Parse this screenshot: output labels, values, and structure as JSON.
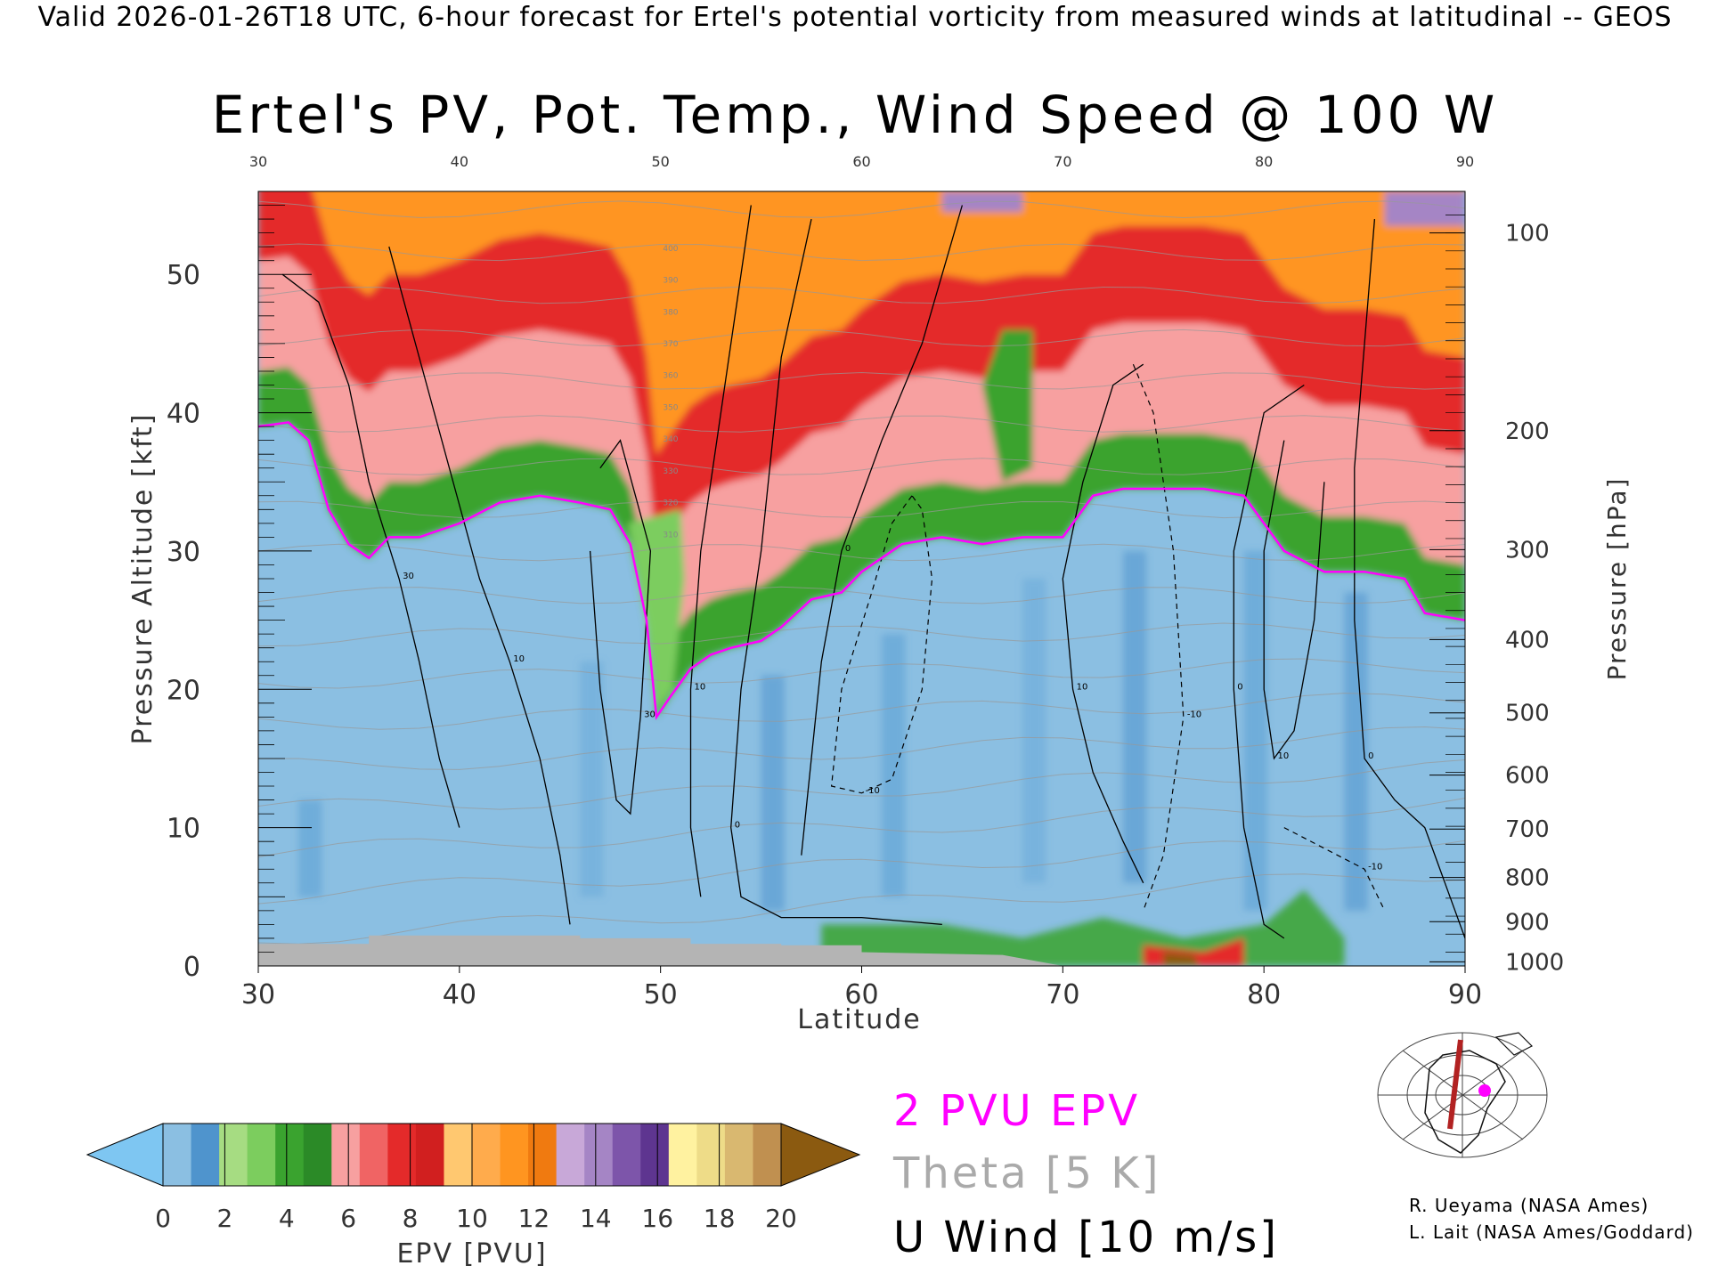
{
  "header": {
    "text": "Valid 2026-01-26T18 UTC, 6-hour forecast for Ertel's potential vorticity from measured winds at latitudinal -- GEOS"
  },
  "title": "Ertel's PV, Pot. Temp., Wind Speed @ 100 W",
  "legend": {
    "epv_line": "2 PVU EPV",
    "theta": "Theta [5 K]",
    "uwind": "U Wind [10 m/s]",
    "epv_color": "#ff00ff",
    "theta_color": "#aaaaaa",
    "uwind_color": "#000000"
  },
  "credits": [
    "R. Ueyama (NASA Ames)",
    "L. Lait (NASA Ames/Goddard)"
  ],
  "chart_data": {
    "type": "heatmap",
    "xlabel": "Latitude",
    "ylabel": "Pressure Altitude [kft]",
    "ylabel_right": "Pressure [hPa]",
    "xlim": [
      30,
      90
    ],
    "ylim": [
      0,
      56
    ],
    "x_ticks": [
      "30",
      "40",
      "50",
      "60",
      "70",
      "80",
      "90"
    ],
    "x_ticks_top": [
      "30",
      "40",
      "50",
      "60",
      "70",
      "80",
      "90"
    ],
    "y_ticks": [
      "0",
      "10",
      "20",
      "30",
      "40",
      "50"
    ],
    "pressure_ticks": [
      {
        "label": "100",
        "kft": 53.0
      },
      {
        "label": "200",
        "kft": 38.7
      },
      {
        "label": "300",
        "kft": 30.1
      },
      {
        "label": "400",
        "kft": 23.6
      },
      {
        "label": "500",
        "kft": 18.3
      },
      {
        "label": "600",
        "kft": 13.8
      },
      {
        "label": "700",
        "kft": 9.9
      },
      {
        "label": "800",
        "kft": 6.4
      },
      {
        "label": "900",
        "kft": 3.2
      },
      {
        "label": "1000",
        "kft": 0.3
      }
    ],
    "colorbar": {
      "label": "EPV [PVU]",
      "ticks": [
        "0",
        "2",
        "4",
        "6",
        "8",
        "10",
        "12",
        "14",
        "16",
        "18",
        "20"
      ],
      "under_color": "#7ec6f2",
      "over_color": "#8b5a10",
      "colors": [
        "#8bbfe2",
        "#4f94cd",
        "#a6dc82",
        "#7ccd5e",
        "#3aa32f",
        "#2b8a27",
        "#f7a0a0",
        "#f06464",
        "#e42a2a",
        "#d11f1f",
        "#ffc870",
        "#ffab4c",
        "#ff9520",
        "#f07a10",
        "#c8a8d8",
        "#a585c5",
        "#7d55aa",
        "#5e3590",
        "#fff2a0",
        "#eedc88",
        "#d9b870",
        "#c09050"
      ]
    },
    "epv_2pvu_contour": [
      [
        30.0,
        39.0
      ],
      [
        31.5,
        39.3
      ],
      [
        32.5,
        38.0
      ],
      [
        33.5,
        33.0
      ],
      [
        34.5,
        30.5
      ],
      [
        35.5,
        29.5
      ],
      [
        36.5,
        31.0
      ],
      [
        38.0,
        31.0
      ],
      [
        40.0,
        32.0
      ],
      [
        42.0,
        33.5
      ],
      [
        44.0,
        34.0
      ],
      [
        46.0,
        33.5
      ],
      [
        47.5,
        33.0
      ],
      [
        48.5,
        30.5
      ],
      [
        49.3,
        25.0
      ],
      [
        49.8,
        18.0
      ],
      [
        50.5,
        19.5
      ],
      [
        51.5,
        21.5
      ],
      [
        52.5,
        22.5
      ],
      [
        53.5,
        23.0
      ],
      [
        55.0,
        23.5
      ],
      [
        56.0,
        24.5
      ],
      [
        57.5,
        26.5
      ],
      [
        59.0,
        27.0
      ],
      [
        60.0,
        28.5
      ],
      [
        62.0,
        30.5
      ],
      [
        64.0,
        31.0
      ],
      [
        66.0,
        30.5
      ],
      [
        68.0,
        31.0
      ],
      [
        70.0,
        31.0
      ],
      [
        71.5,
        34.0
      ],
      [
        73.0,
        34.5
      ],
      [
        75.0,
        34.5
      ],
      [
        77.0,
        34.5
      ],
      [
        79.0,
        34.0
      ],
      [
        81.0,
        30.0
      ],
      [
        83.0,
        28.5
      ],
      [
        85.0,
        28.5
      ],
      [
        87.0,
        28.0
      ],
      [
        88.0,
        25.5
      ],
      [
        90.0,
        25.0
      ]
    ],
    "u_wind_contours": [
      {
        "label": "30",
        "points": [
          [
            31.2,
            50.0
          ],
          [
            33.0,
            48.0
          ],
          [
            34.5,
            42.0
          ],
          [
            35.5,
            35.0
          ],
          [
            37.0,
            28.0
          ],
          [
            38.0,
            22.0
          ],
          [
            39.0,
            15.0
          ],
          [
            40.0,
            10.0
          ]
        ]
      },
      {
        "label": "10",
        "points": [
          [
            36.5,
            52.0
          ],
          [
            38.0,
            44.0
          ],
          [
            39.5,
            36.0
          ],
          [
            41.0,
            28.0
          ],
          [
            42.5,
            22.0
          ],
          [
            44.0,
            15.0
          ],
          [
            45.0,
            8.0
          ],
          [
            45.5,
            3.0
          ]
        ]
      },
      {
        "label": "30",
        "points": [
          [
            46.5,
            30.0
          ],
          [
            47.0,
            20.0
          ],
          [
            47.8,
            12.0
          ],
          [
            48.5,
            11.0
          ],
          [
            49.0,
            18.0
          ],
          [
            49.5,
            30.0
          ],
          [
            48.0,
            38.0
          ],
          [
            47.0,
            36.0
          ]
        ]
      },
      {
        "label": "10",
        "points": [
          [
            54.5,
            55.0
          ],
          [
            53.0,
            40.0
          ],
          [
            52.0,
            30.0
          ],
          [
            51.5,
            20.0
          ],
          [
            51.5,
            10.0
          ],
          [
            52.0,
            5.0
          ]
        ]
      },
      {
        "label": "0",
        "points": [
          [
            57.5,
            54.0
          ],
          [
            56.0,
            44.0
          ],
          [
            55.0,
            30.0
          ],
          [
            54.0,
            20.0
          ],
          [
            53.5,
            10.0
          ],
          [
            54.0,
            5.0
          ],
          [
            56.0,
            3.5
          ],
          [
            60.0,
            3.5
          ],
          [
            64.0,
            3.0
          ]
        ]
      },
      {
        "label": "0",
        "points": [
          [
            65.0,
            55.0
          ],
          [
            63.0,
            45.0
          ],
          [
            61.0,
            38.0
          ],
          [
            59.0,
            30.0
          ],
          [
            58.0,
            22.0
          ],
          [
            57.5,
            15.0
          ],
          [
            57.0,
            8.0
          ]
        ]
      },
      {
        "label": "10",
        "points": [
          [
            74.0,
            43.5
          ],
          [
            72.5,
            42.0
          ],
          [
            71.0,
            35.0
          ],
          [
            70.0,
            28.0
          ],
          [
            70.5,
            20.0
          ],
          [
            71.5,
            14.0
          ],
          [
            73.0,
            9.0
          ],
          [
            74.0,
            6.0
          ]
        ]
      },
      {
        "label": "0",
        "points": [
          [
            82.0,
            42.0
          ],
          [
            80.0,
            40.0
          ],
          [
            78.5,
            30.0
          ],
          [
            78.5,
            20.0
          ],
          [
            79.0,
            10.0
          ],
          [
            80.0,
            3.0
          ],
          [
            81.0,
            2.0
          ]
        ]
      },
      {
        "label": "0",
        "points": [
          [
            85.5,
            54.0
          ],
          [
            85.0,
            45.0
          ],
          [
            84.5,
            36.0
          ],
          [
            84.5,
            25.0
          ],
          [
            85.0,
            15.0
          ],
          [
            86.5,
            12.0
          ],
          [
            88.0,
            10.0
          ],
          [
            89.0,
            6.0
          ],
          [
            90.0,
            2.0
          ]
        ]
      },
      {
        "label": "10",
        "points": [
          [
            81.0,
            38.0
          ],
          [
            80.0,
            30.0
          ],
          [
            80.0,
            20.0
          ],
          [
            80.5,
            15.0
          ],
          [
            81.5,
            17.0
          ],
          [
            82.5,
            25.0
          ],
          [
            83.0,
            35.0
          ]
        ]
      }
    ],
    "u_wind_dashed_contours": [
      {
        "label": "-10",
        "points": [
          [
            62.5,
            34.0
          ],
          [
            61.5,
            32.0
          ],
          [
            60.5,
            27.0
          ],
          [
            59.0,
            20.0
          ],
          [
            58.5,
            13.0
          ],
          [
            60.0,
            12.5
          ],
          [
            61.5,
            13.5
          ],
          [
            63.0,
            20.0
          ],
          [
            63.5,
            28.0
          ],
          [
            63.0,
            33.0
          ],
          [
            62.5,
            34.0
          ]
        ]
      },
      {
        "label": "-10",
        "points": [
          [
            73.5,
            43.5
          ],
          [
            74.5,
            40.0
          ],
          [
            75.5,
            30.0
          ],
          [
            76.0,
            18.0
          ],
          [
            75.0,
            8.0
          ],
          [
            74.0,
            4.0
          ]
        ]
      },
      {
        "label": "-10",
        "points": [
          [
            81.0,
            10.0
          ],
          [
            83.0,
            8.5
          ],
          [
            85.0,
            7.0
          ],
          [
            86.0,
            4.0
          ]
        ]
      }
    ],
    "theta_labels": [
      "310",
      "320",
      "330",
      "340",
      "350",
      "360",
      "370",
      "380",
      "390",
      "400"
    ],
    "region_colors": {
      "troposphere": "#8bbfe2",
      "tropopause_band": "#3aa32f",
      "lower_stratosphere": "#f7a0a0",
      "stratosphere": "#e42a2a",
      "upper": "#ff9520",
      "top": "#a585c5",
      "terrain": "#b4b4b4"
    }
  }
}
